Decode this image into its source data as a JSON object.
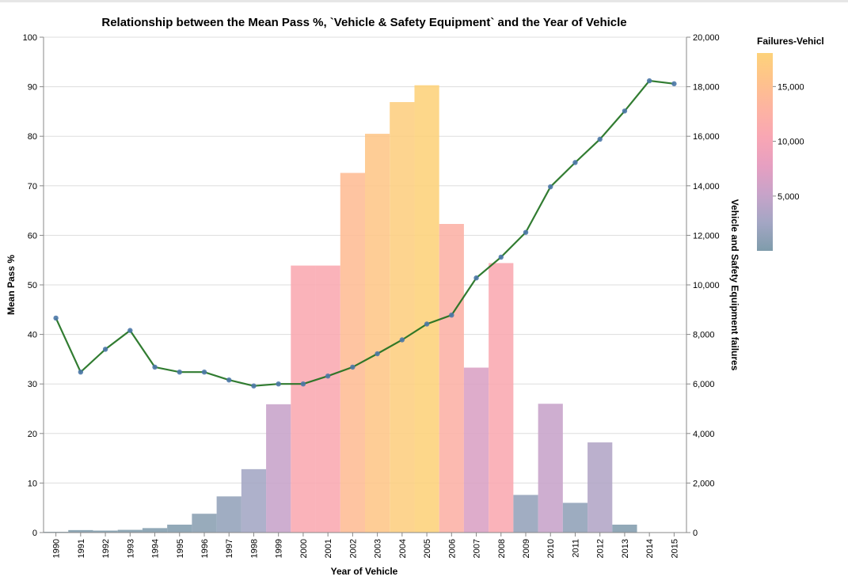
{
  "chart_data": {
    "type": "bar+line",
    "title": "Relationship between the Mean Pass %, `Vehicle & Safety Equipment` and the Year of Vehicle",
    "xlabel": "Year of Vehicle",
    "ylabel_left": "Mean Pass %",
    "ylabel_right": "Vehicle and Safety Equipment failures",
    "categories": [
      "1990",
      "1991",
      "1992",
      "1993",
      "1994",
      "1995",
      "1996",
      "1997",
      "1998",
      "1999",
      "2000",
      "2001",
      "2002",
      "2003",
      "2004",
      "2005",
      "2006",
      "2007",
      "2008",
      "2009",
      "2010",
      "2011",
      "2012",
      "2013",
      "2014",
      "2015"
    ],
    "series": [
      {
        "name": "Failures-Vehicl",
        "type": "bar",
        "axis": "right",
        "values": [
          30,
          100,
          80,
          110,
          180,
          320,
          760,
          1460,
          2560,
          5180,
          10780,
          10780,
          14520,
          16100,
          17380,
          18060,
          12460,
          6660,
          10880,
          1520,
          5200,
          1200,
          3640,
          320,
          0,
          0
        ]
      },
      {
        "name": "Mean Pass %",
        "type": "line",
        "axis": "left",
        "values": [
          43.3,
          32.4,
          37.0,
          40.8,
          33.4,
          32.4,
          32.4,
          30.8,
          29.6,
          30.0,
          30.0,
          31.6,
          33.4,
          36.1,
          38.9,
          42.1,
          43.9,
          51.4,
          55.6,
          60.6,
          69.8,
          74.7,
          79.4,
          85.1,
          91.2,
          90.6
        ]
      }
    ],
    "ylim_left": [
      0,
      100
    ],
    "yticks_left": [
      0,
      10,
      20,
      30,
      40,
      50,
      60,
      70,
      80,
      90,
      100
    ],
    "ylim_right": [
      0,
      20000
    ],
    "yticks_right": [
      "0",
      "2,000",
      "4,000",
      "6,000",
      "8,000",
      "10,000",
      "12,000",
      "14,000",
      "16,000",
      "18,000",
      "20,000"
    ],
    "grid": true,
    "legend": {
      "title": "Failures-Vehicl",
      "placement": "right",
      "range": [
        0,
        18060
      ],
      "ticks": [
        {
          "value": 5000,
          "label": "5,000"
        },
        {
          "value": 10000,
          "label": "10,000"
        },
        {
          "value": 15000,
          "label": "15,000"
        }
      ]
    },
    "colors": {
      "line": "#1b6e1b",
      "point": "#4c78a8",
      "gradient": [
        "#7f9cab",
        "#a3a6c4",
        "#c7a3c9",
        "#e69fc1",
        "#f8a6b4",
        "#fdb3a2",
        "#fec28c",
        "#fdd27a"
      ]
    }
  }
}
